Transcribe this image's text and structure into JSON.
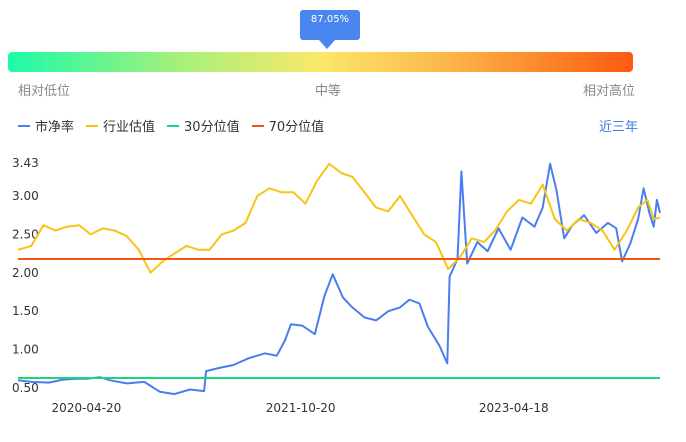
{
  "gauge": {
    "percentile_label": "87.05%",
    "percentile": 0.8705,
    "low_label": "相对低位",
    "mid_label": "中等",
    "high_label": "相对高位"
  },
  "range_label": "近三年",
  "colors": {
    "pb": "#4a7ef0",
    "industry": "#f7c416",
    "p30": "#1ad67a",
    "p70": "#f0561a"
  },
  "chart_data": {
    "type": "line",
    "title": "",
    "xlabel": "",
    "ylabel": "",
    "ylim": [
      0.5,
      3.43
    ],
    "y_ticks": [
      0.5,
      1.0,
      1.5,
      2.0,
      2.5,
      3.0,
      3.43
    ],
    "y_tick_labels": [
      "0.50",
      "1.00",
      "1.50",
      "2.00",
      "2.50",
      "3.00",
      "3.43"
    ],
    "x_tick_labels": [
      "2020-04-20",
      "2021-10-20",
      "2023-04-18"
    ],
    "x_tick_dates": [
      "2020-04-20",
      "2021-10-20",
      "2023-04-18"
    ],
    "x_range": [
      "2019-10-28",
      "2024-04-26"
    ],
    "legend_position": "top-left",
    "series": [
      {
        "name": "市净率",
        "points": [
          [
            "2019-10-28",
            0.6
          ],
          [
            "2019-12-01",
            0.58
          ],
          [
            "2020-01-15",
            0.57
          ],
          [
            "2020-02-20",
            0.61
          ],
          [
            "2020-03-25",
            0.62
          ],
          [
            "2020-04-20",
            0.62
          ],
          [
            "2020-05-25",
            0.64
          ],
          [
            "2020-06-20",
            0.6
          ],
          [
            "2020-08-01",
            0.56
          ],
          [
            "2020-09-15",
            0.58
          ],
          [
            "2020-10-25",
            0.45
          ],
          [
            "2020-12-01",
            0.42
          ],
          [
            "2021-01-10",
            0.48
          ],
          [
            "2021-02-15",
            0.46
          ],
          [
            "2021-02-20",
            0.72
          ],
          [
            "2021-03-25",
            0.76
          ],
          [
            "2021-05-01",
            0.8
          ],
          [
            "2021-06-10",
            0.89
          ],
          [
            "2021-07-20",
            0.95
          ],
          [
            "2021-08-20",
            0.92
          ],
          [
            "2021-09-10",
            1.12
          ],
          [
            "2021-09-25",
            1.33
          ],
          [
            "2021-10-25",
            1.31
          ],
          [
            "2021-11-25",
            1.2
          ],
          [
            "2021-12-20",
            1.7
          ],
          [
            "2022-01-10",
            1.98
          ],
          [
            "2022-02-05",
            1.68
          ],
          [
            "2022-03-01",
            1.55
          ],
          [
            "2022-04-01",
            1.42
          ],
          [
            "2022-05-01",
            1.38
          ],
          [
            "2022-06-01",
            1.5
          ],
          [
            "2022-07-01",
            1.55
          ],
          [
            "2022-07-25",
            1.65
          ],
          [
            "2022-08-20",
            1.6
          ],
          [
            "2022-09-10",
            1.3
          ],
          [
            "2022-10-10",
            1.05
          ],
          [
            "2022-10-30",
            0.82
          ],
          [
            "2022-11-05",
            1.95
          ],
          [
            "2022-11-25",
            2.18
          ],
          [
            "2022-12-05",
            3.32
          ],
          [
            "2022-12-20",
            2.12
          ],
          [
            "2023-01-15",
            2.4
          ],
          [
            "2023-02-10",
            2.28
          ],
          [
            "2023-03-10",
            2.58
          ],
          [
            "2023-04-10",
            2.3
          ],
          [
            "2023-05-10",
            2.72
          ],
          [
            "2023-06-10",
            2.6
          ],
          [
            "2023-07-01",
            2.85
          ],
          [
            "2023-07-20",
            3.42
          ],
          [
            "2023-08-05",
            3.08
          ],
          [
            "2023-08-25",
            2.45
          ],
          [
            "2023-09-15",
            2.62
          ],
          [
            "2023-10-15",
            2.75
          ],
          [
            "2023-11-15",
            2.52
          ],
          [
            "2023-12-15",
            2.65
          ],
          [
            "2024-01-05",
            2.58
          ],
          [
            "2024-01-20",
            2.15
          ],
          [
            "2024-02-10",
            2.38
          ],
          [
            "2024-03-01",
            2.7
          ],
          [
            "2024-03-15",
            3.1
          ],
          [
            "2024-03-30",
            2.78
          ],
          [
            "2024-04-10",
            2.6
          ],
          [
            "2024-04-18",
            2.95
          ],
          [
            "2024-04-26",
            2.78
          ]
        ]
      },
      {
        "name": "行业估值",
        "points": [
          [
            "2019-10-28",
            2.3
          ],
          [
            "2019-12-01",
            2.35
          ],
          [
            "2020-01-01",
            2.62
          ],
          [
            "2020-02-01",
            2.55
          ],
          [
            "2020-03-01",
            2.6
          ],
          [
            "2020-04-01",
            2.62
          ],
          [
            "2020-05-01",
            2.5
          ],
          [
            "2020-06-01",
            2.58
          ],
          [
            "2020-07-01",
            2.55
          ],
          [
            "2020-08-01",
            2.48
          ],
          [
            "2020-09-01",
            2.3
          ],
          [
            "2020-10-01",
            2.0
          ],
          [
            "2020-11-01",
            2.15
          ],
          [
            "2020-12-01",
            2.25
          ],
          [
            "2021-01-01",
            2.35
          ],
          [
            "2021-02-01",
            2.3
          ],
          [
            "2021-03-01",
            2.3
          ],
          [
            "2021-04-01",
            2.5
          ],
          [
            "2021-05-01",
            2.55
          ],
          [
            "2021-06-01",
            2.65
          ],
          [
            "2021-07-01",
            3.0
          ],
          [
            "2021-08-01",
            3.1
          ],
          [
            "2021-09-01",
            3.05
          ],
          [
            "2021-10-01",
            3.05
          ],
          [
            "2021-11-01",
            2.9
          ],
          [
            "2021-12-01",
            3.2
          ],
          [
            "2022-01-01",
            3.42
          ],
          [
            "2022-02-01",
            3.3
          ],
          [
            "2022-03-01",
            3.25
          ],
          [
            "2022-04-01",
            3.05
          ],
          [
            "2022-05-01",
            2.85
          ],
          [
            "2022-06-01",
            2.8
          ],
          [
            "2022-07-01",
            3.0
          ],
          [
            "2022-08-01",
            2.75
          ],
          [
            "2022-09-01",
            2.5
          ],
          [
            "2022-10-01",
            2.4
          ],
          [
            "2022-11-01",
            2.05
          ],
          [
            "2022-12-01",
            2.2
          ],
          [
            "2023-01-01",
            2.45
          ],
          [
            "2023-02-01",
            2.4
          ],
          [
            "2023-03-01",
            2.55
          ],
          [
            "2023-04-01",
            2.8
          ],
          [
            "2023-05-01",
            2.95
          ],
          [
            "2023-06-01",
            2.9
          ],
          [
            "2023-07-01",
            3.15
          ],
          [
            "2023-08-01",
            2.7
          ],
          [
            "2023-09-01",
            2.55
          ],
          [
            "2023-10-01",
            2.7
          ],
          [
            "2023-11-01",
            2.65
          ],
          [
            "2023-12-01",
            2.55
          ],
          [
            "2024-01-01",
            2.3
          ],
          [
            "2024-02-01",
            2.55
          ],
          [
            "2024-03-01",
            2.85
          ],
          [
            "2024-03-25",
            2.95
          ],
          [
            "2024-04-10",
            2.7
          ],
          [
            "2024-04-26",
            2.72
          ]
        ]
      },
      {
        "name": "30分位值",
        "value": 0.63
      },
      {
        "name": "70分位值",
        "value": 2.18
      }
    ]
  }
}
